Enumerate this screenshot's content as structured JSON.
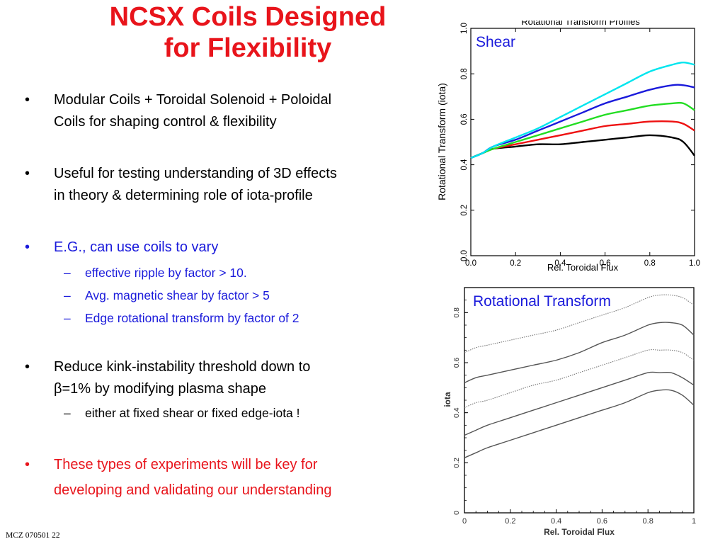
{
  "slide": {
    "title_line1": "NCSX Coils Designed",
    "title_line2": "for Flexibility",
    "footer": "MCZ 070501  22"
  },
  "bullets": {
    "b1_l1": "Modular Coils + Toroidal Solenoid + Poloidal",
    "b1_l2": "Coils for shaping control & flexibility",
    "b2_l1": "Useful for testing understanding of 3D effects",
    "b2_l2": "in theory & determining role of iota-profile",
    "b3": "E.G., can use coils to vary",
    "b3_s1": "effective ripple by factor > 10.",
    "b3_s2": "Avg. magnetic shear by factor >  5",
    "b3_s3": "Edge rotational transform by factor of 2",
    "b4_l1": "Reduce kink-instability threshold down to",
    "b4_l2": "β=1% by modifying plasma shape",
    "b4_s1": "either at fixed shear or fixed edge-iota !",
    "b5_l1": "These types of experiments will be key for",
    "b5_l2": "developing and validating our understanding",
    "bullet_symbol": "•",
    "dash_symbol": "–"
  },
  "colors": {
    "title": "#e8141b",
    "blue": "#1a1adb",
    "red": "#e8141b"
  },
  "chart_data": [
    {
      "type": "line",
      "title": "Rotational Transform Profiles",
      "annotation": "Shear",
      "xlabel": "Rel.  Toroidal Flux",
      "ylabel": "Rotational Transform (iota)",
      "xlim": [
        0,
        1
      ],
      "ylim": [
        0,
        1
      ],
      "xticks": [
        "0.0",
        "0.2",
        "0.4",
        "0.6",
        "0.8",
        "1.0"
      ],
      "yticks": [
        "0.0",
        "0.2",
        "0.4",
        "0.6",
        "0.8",
        "1.0"
      ],
      "x": [
        0,
        0.05,
        0.1,
        0.2,
        0.3,
        0.4,
        0.5,
        0.6,
        0.7,
        0.8,
        0.9,
        0.95,
        1.0
      ],
      "series": [
        {
          "color": "#00e5ee",
          "values": [
            0.43,
            0.45,
            0.48,
            0.52,
            0.56,
            0.61,
            0.66,
            0.71,
            0.76,
            0.81,
            0.84,
            0.85,
            0.84
          ]
        },
        {
          "color": "#1a1adb",
          "values": [
            0.43,
            0.45,
            0.48,
            0.51,
            0.55,
            0.59,
            0.63,
            0.67,
            0.7,
            0.73,
            0.75,
            0.75,
            0.74
          ]
        },
        {
          "color": "#22dd22",
          "values": [
            0.43,
            0.45,
            0.47,
            0.5,
            0.53,
            0.56,
            0.59,
            0.62,
            0.64,
            0.66,
            0.67,
            0.67,
            0.64
          ]
        },
        {
          "color": "#ee1111",
          "values": [
            0.43,
            0.45,
            0.47,
            0.49,
            0.51,
            0.53,
            0.55,
            0.57,
            0.58,
            0.59,
            0.59,
            0.58,
            0.55
          ]
        },
        {
          "color": "#000000",
          "values": [
            0.43,
            0.45,
            0.47,
            0.48,
            0.49,
            0.49,
            0.5,
            0.51,
            0.52,
            0.53,
            0.52,
            0.5,
            0.44
          ]
        }
      ]
    },
    {
      "type": "line",
      "title": "Rotational Transform",
      "xlabel": "Rel. Toroidal Flux",
      "ylabel": "iota",
      "xlim": [
        0,
        1
      ],
      "ylim": [
        0,
        0.9
      ],
      "xticks": [
        "0",
        "0.2",
        "0.4",
        "0.6",
        "0.8",
        "1"
      ],
      "yticks": [
        "0",
        "0.2",
        "0.4",
        "0.6",
        "0.8"
      ],
      "x": [
        0,
        0.05,
        0.1,
        0.2,
        0.3,
        0.4,
        0.5,
        0.6,
        0.7,
        0.8,
        0.85,
        0.9,
        0.95,
        1.0
      ],
      "series": [
        {
          "style": "dotted",
          "values": [
            0.64,
            0.66,
            0.67,
            0.69,
            0.71,
            0.73,
            0.76,
            0.79,
            0.82,
            0.86,
            0.87,
            0.87,
            0.86,
            0.83
          ]
        },
        {
          "style": "solid",
          "values": [
            0.52,
            0.54,
            0.55,
            0.57,
            0.59,
            0.61,
            0.64,
            0.68,
            0.71,
            0.75,
            0.76,
            0.76,
            0.75,
            0.71
          ]
        },
        {
          "style": "dotted",
          "values": [
            0.42,
            0.44,
            0.45,
            0.48,
            0.51,
            0.53,
            0.56,
            0.59,
            0.62,
            0.65,
            0.65,
            0.65,
            0.64,
            0.61
          ]
        },
        {
          "style": "solid",
          "values": [
            0.31,
            0.33,
            0.35,
            0.38,
            0.41,
            0.44,
            0.47,
            0.5,
            0.53,
            0.56,
            0.56,
            0.56,
            0.54,
            0.51
          ]
        },
        {
          "style": "solid",
          "values": [
            0.22,
            0.24,
            0.26,
            0.29,
            0.32,
            0.35,
            0.38,
            0.41,
            0.44,
            0.48,
            0.49,
            0.49,
            0.47,
            0.43
          ]
        }
      ]
    }
  ]
}
